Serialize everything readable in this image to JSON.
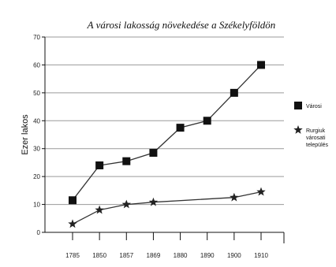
{
  "chart_data": {
    "type": "line",
    "title": "A városi lakosság növekedése a Székelyföldön",
    "ylabel": "Ezer lakos",
    "xlabel": "",
    "categories": [
      "1785",
      "1850",
      "1857",
      "1869",
      "1880",
      "1890",
      "1900",
      "1910"
    ],
    "ylim": [
      0,
      70
    ],
    "yticks": [
      0,
      10,
      20,
      30,
      40,
      50,
      60,
      70
    ],
    "grid": true,
    "legend_position": "right",
    "series": [
      {
        "name": "Városi",
        "marker": "square",
        "values": [
          11.5,
          24,
          25.5,
          28.5,
          37.5,
          40,
          50,
          60
        ]
      },
      {
        "name": "Rurgiuk városati település",
        "marker": "star",
        "values": [
          3,
          8,
          10,
          10.8,
          null,
          null,
          12.5,
          14.5
        ]
      }
    ]
  }
}
